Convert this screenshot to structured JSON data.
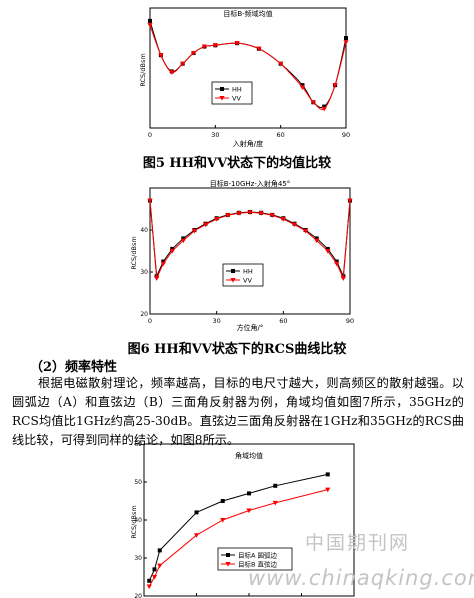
{
  "figures": [
    {
      "title": "目标B-频域均值",
      "ylabel": "RCS/dBsm",
      "xlabel": "入射角/度",
      "xticks": [
        "0",
        "30",
        "60",
        "90"
      ],
      "legend": [
        "HH",
        "VV"
      ],
      "caption": "图5    HH和VV状态下的均值比较"
    },
    {
      "title": "目标B-10GHz-入射角45°",
      "ylabel": "RCS/dBsm",
      "xlabel": "方位角/°",
      "xticks": [
        "0",
        "30",
        "60",
        "90"
      ],
      "yticks": [
        "20",
        "30",
        "40"
      ],
      "legend": [
        "HH",
        "VV"
      ],
      "caption": "图6 HH和VV状态下的RCS曲线比较"
    },
    {
      "title": "角域均值",
      "ylabel": "RCS/dBsm",
      "yticks": [
        "20",
        "30",
        "40",
        "50",
        "60"
      ],
      "legend": [
        "目标A 圆弧边",
        "目标B 直弦边"
      ]
    }
  ],
  "section_heading": "（2）频率特性",
  "paragraph": "根据电磁散射理论，频率越高，目标的电尺寸越大，则高频区的散射越强。以圆弧边（A）和直弦边（B）三面角反射器为例，角域均值如图7所示，35GHz的RCS均值比1GHz约高25-30dB。直弦边三面角反射器在1GHz和35GHz的RCS曲线比较，可得到同样的结论，如图8所示。",
  "watermark": {
    "cn": "中国期刊网",
    "url": "www.chinaqking.com"
  },
  "chart_data": [
    {
      "type": "line",
      "title": "目标B-频域均值",
      "xlabel": "入射角/度",
      "ylabel": "RCS/dBsm",
      "xlim": [
        0,
        90
      ],
      "ylim": [
        20,
        48
      ],
      "series": [
        {
          "name": "HH",
          "x": [
            0,
            5,
            10,
            15,
            20,
            25,
            30,
            40,
            50,
            60,
            70,
            75,
            80,
            85,
            90
          ],
          "y": [
            45,
            37,
            33.2,
            35,
            37.5,
            39,
            39.3,
            39.8,
            38.5,
            35,
            30,
            26,
            25,
            30,
            41
          ]
        },
        {
          "name": "VV",
          "x": [
            0,
            5,
            10,
            15,
            20,
            25,
            30,
            40,
            50,
            60,
            70,
            75,
            80,
            85,
            90
          ],
          "y": [
            44,
            37,
            33.0,
            35,
            37.5,
            39,
            39.3,
            39.8,
            38.5,
            35,
            29.5,
            26,
            24.5,
            30,
            40
          ]
        }
      ]
    },
    {
      "type": "line",
      "title": "目标B-10GHz-入射角45°",
      "xlabel": "方位角/°",
      "ylabel": "RCS/dBsm",
      "xlim": [
        0,
        90
      ],
      "ylim": [
        20,
        50
      ],
      "series": [
        {
          "name": "HH",
          "x": [
            0,
            3,
            6,
            10,
            15,
            20,
            25,
            30,
            35,
            40,
            45,
            50,
            55,
            60,
            65,
            70,
            75,
            80,
            84,
            87,
            90
          ],
          "y": [
            47,
            29,
            32.5,
            35.5,
            38,
            40,
            41.5,
            42.8,
            43.6,
            44.1,
            44.3,
            44.1,
            43.6,
            42.8,
            41.5,
            40,
            38,
            35.5,
            32.5,
            29,
            47
          ]
        },
        {
          "name": "VV",
          "x": [
            0,
            3,
            6,
            10,
            15,
            20,
            25,
            30,
            35,
            40,
            45,
            50,
            55,
            60,
            65,
            70,
            75,
            80,
            84,
            87,
            90
          ],
          "y": [
            47,
            28.5,
            32,
            35,
            37.5,
            39.8,
            41.3,
            42.6,
            43.5,
            44,
            44.2,
            44,
            43.5,
            42.6,
            41.3,
            39.8,
            37.5,
            35,
            32,
            28.5,
            47
          ]
        }
      ]
    },
    {
      "type": "line",
      "title": "角域均值",
      "ylabel": "RCS/dBsm",
      "xlim": [
        0,
        40
      ],
      "ylim": [
        20,
        60
      ],
      "series": [
        {
          "name": "目标A 圆弧边",
          "x": [
            1,
            2,
            3,
            10,
            15,
            20,
            25,
            35
          ],
          "y": [
            24,
            27,
            32,
            42,
            45,
            47,
            49,
            52
          ]
        },
        {
          "name": "目标B 直弦边",
          "x": [
            1,
            2,
            3,
            10,
            15,
            20,
            25,
            35
          ],
          "y": [
            22.5,
            25,
            28,
            36,
            40,
            42.5,
            44.5,
            48
          ]
        }
      ]
    }
  ]
}
